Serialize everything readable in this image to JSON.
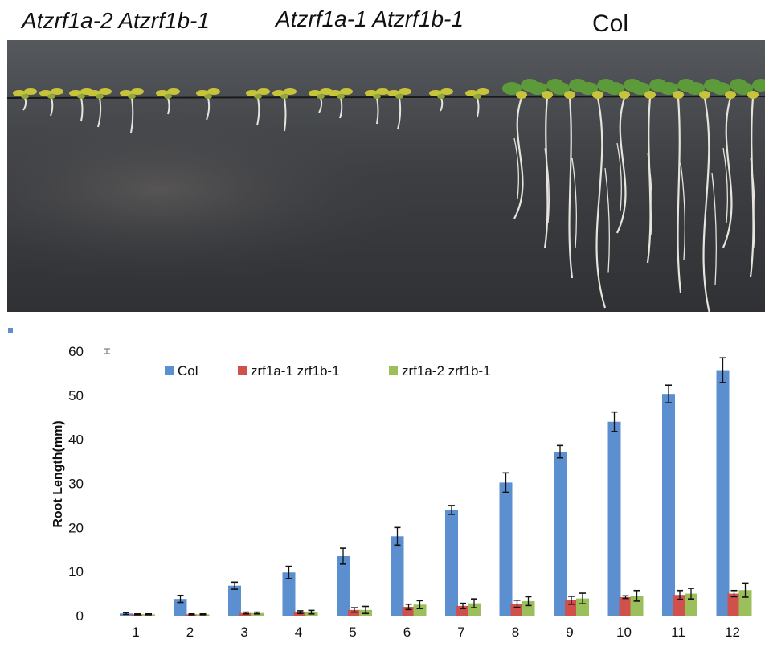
{
  "photo": {
    "labels": {
      "group1": "Atzrf1a-2 Atzrf1b-1",
      "group2": "Atzrf1a-1 Atzrf1b-1",
      "group3": "Col"
    },
    "colors": {
      "background": "#3b3d41",
      "leaf": "#5d9b3a",
      "leaf_yellow": "#c8c43a",
      "root": "#e6e4dc"
    }
  },
  "chart_data": {
    "type": "bar",
    "ylabel": "Root Length(mm)",
    "xlabel": "",
    "ylim": [
      0,
      60
    ],
    "yticks": [
      0,
      10,
      20,
      30,
      40,
      50,
      60
    ],
    "categories": [
      "1",
      "2",
      "3",
      "4",
      "5",
      "6",
      "7",
      "8",
      "9",
      "10",
      "11",
      "12"
    ],
    "legend_position": "top",
    "series": [
      {
        "name": "Col",
        "color": "#5b8fd0",
        "values": [
          0.5,
          3.8,
          6.8,
          9.8,
          13.5,
          18.0,
          24.0,
          30.2,
          37.2,
          44.0,
          50.3,
          55.7
        ],
        "errors": [
          0.2,
          0.8,
          0.8,
          1.4,
          1.8,
          2.0,
          1.0,
          2.2,
          1.4,
          2.2,
          2.0,
          2.8
        ]
      },
      {
        "name": "zrf1a-1 zrf1b-1",
        "color": "#d0504b",
        "values": [
          0.3,
          0.3,
          0.6,
          0.8,
          1.3,
          2.0,
          2.2,
          2.7,
          3.5,
          4.2,
          4.7,
          5.0
        ],
        "errors": [
          0.1,
          0.1,
          0.2,
          0.3,
          0.5,
          0.6,
          0.6,
          0.8,
          0.9,
          0.3,
          1.0,
          0.7
        ]
      },
      {
        "name": "zrf1a-2 zrf1b-1",
        "color": "#9bbf5a",
        "values": [
          0.3,
          0.3,
          0.6,
          0.8,
          1.3,
          2.5,
          2.8,
          3.3,
          3.9,
          4.5,
          5.0,
          5.8
        ],
        "errors": [
          0.1,
          0.1,
          0.2,
          0.4,
          0.8,
          0.9,
          1.0,
          1.0,
          1.2,
          1.2,
          1.2,
          1.6
        ]
      }
    ]
  }
}
